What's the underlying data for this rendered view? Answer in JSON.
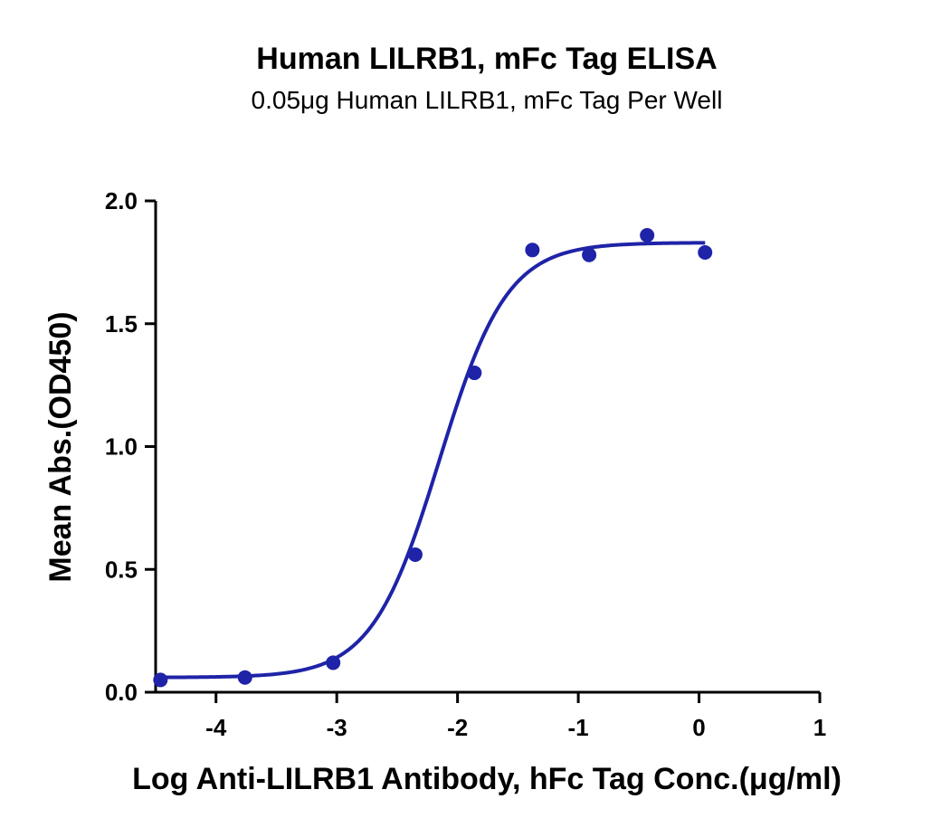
{
  "chart_data": {
    "type": "scatter",
    "title": "Human LILRB1, mFc Tag ELISA",
    "subtitle": "0.05μg Human LILRB1, mFc Tag Per Well",
    "xlabel": "Log Anti-LILRB1 Antibody, hFc Tag Conc.(μg/ml)",
    "ylabel": "Mean Abs.(OD450)",
    "xlim": [
      -4.5,
      1
    ],
    "ylim": [
      0,
      2.0
    ],
    "x_ticks": [
      -4,
      -3,
      -2,
      -1,
      0,
      1
    ],
    "x_tick_labels": [
      "-4",
      "-3",
      "-2",
      "-1",
      "0",
      "1"
    ],
    "y_ticks": [
      0,
      0.5,
      1.0,
      1.5,
      2.0
    ],
    "y_tick_labels": [
      "0.0",
      "0.5",
      "1.0",
      "1.5",
      "2.0"
    ],
    "grid": false,
    "legend": "none",
    "series": [
      {
        "points": [
          {
            "x": -4.46,
            "y": 0.05
          },
          {
            "x": -3.76,
            "y": 0.06
          },
          {
            "x": -3.03,
            "y": 0.12
          },
          {
            "x": -2.35,
            "y": 0.56
          },
          {
            "x": -1.86,
            "y": 1.3
          },
          {
            "x": -1.38,
            "y": 1.8
          },
          {
            "x": -0.91,
            "y": 1.78
          },
          {
            "x": -0.43,
            "y": 1.86
          },
          {
            "x": 0.05,
            "y": 1.79
          }
        ],
        "fit": {
          "model": "four-parameter logistic",
          "bottom": 0.06,
          "top": 1.83,
          "log_ec50": -2.15,
          "hill_slope": 1.55,
          "x_start": -4.46,
          "x_end": 0.05
        },
        "color": "#1f23a8"
      }
    ]
  }
}
